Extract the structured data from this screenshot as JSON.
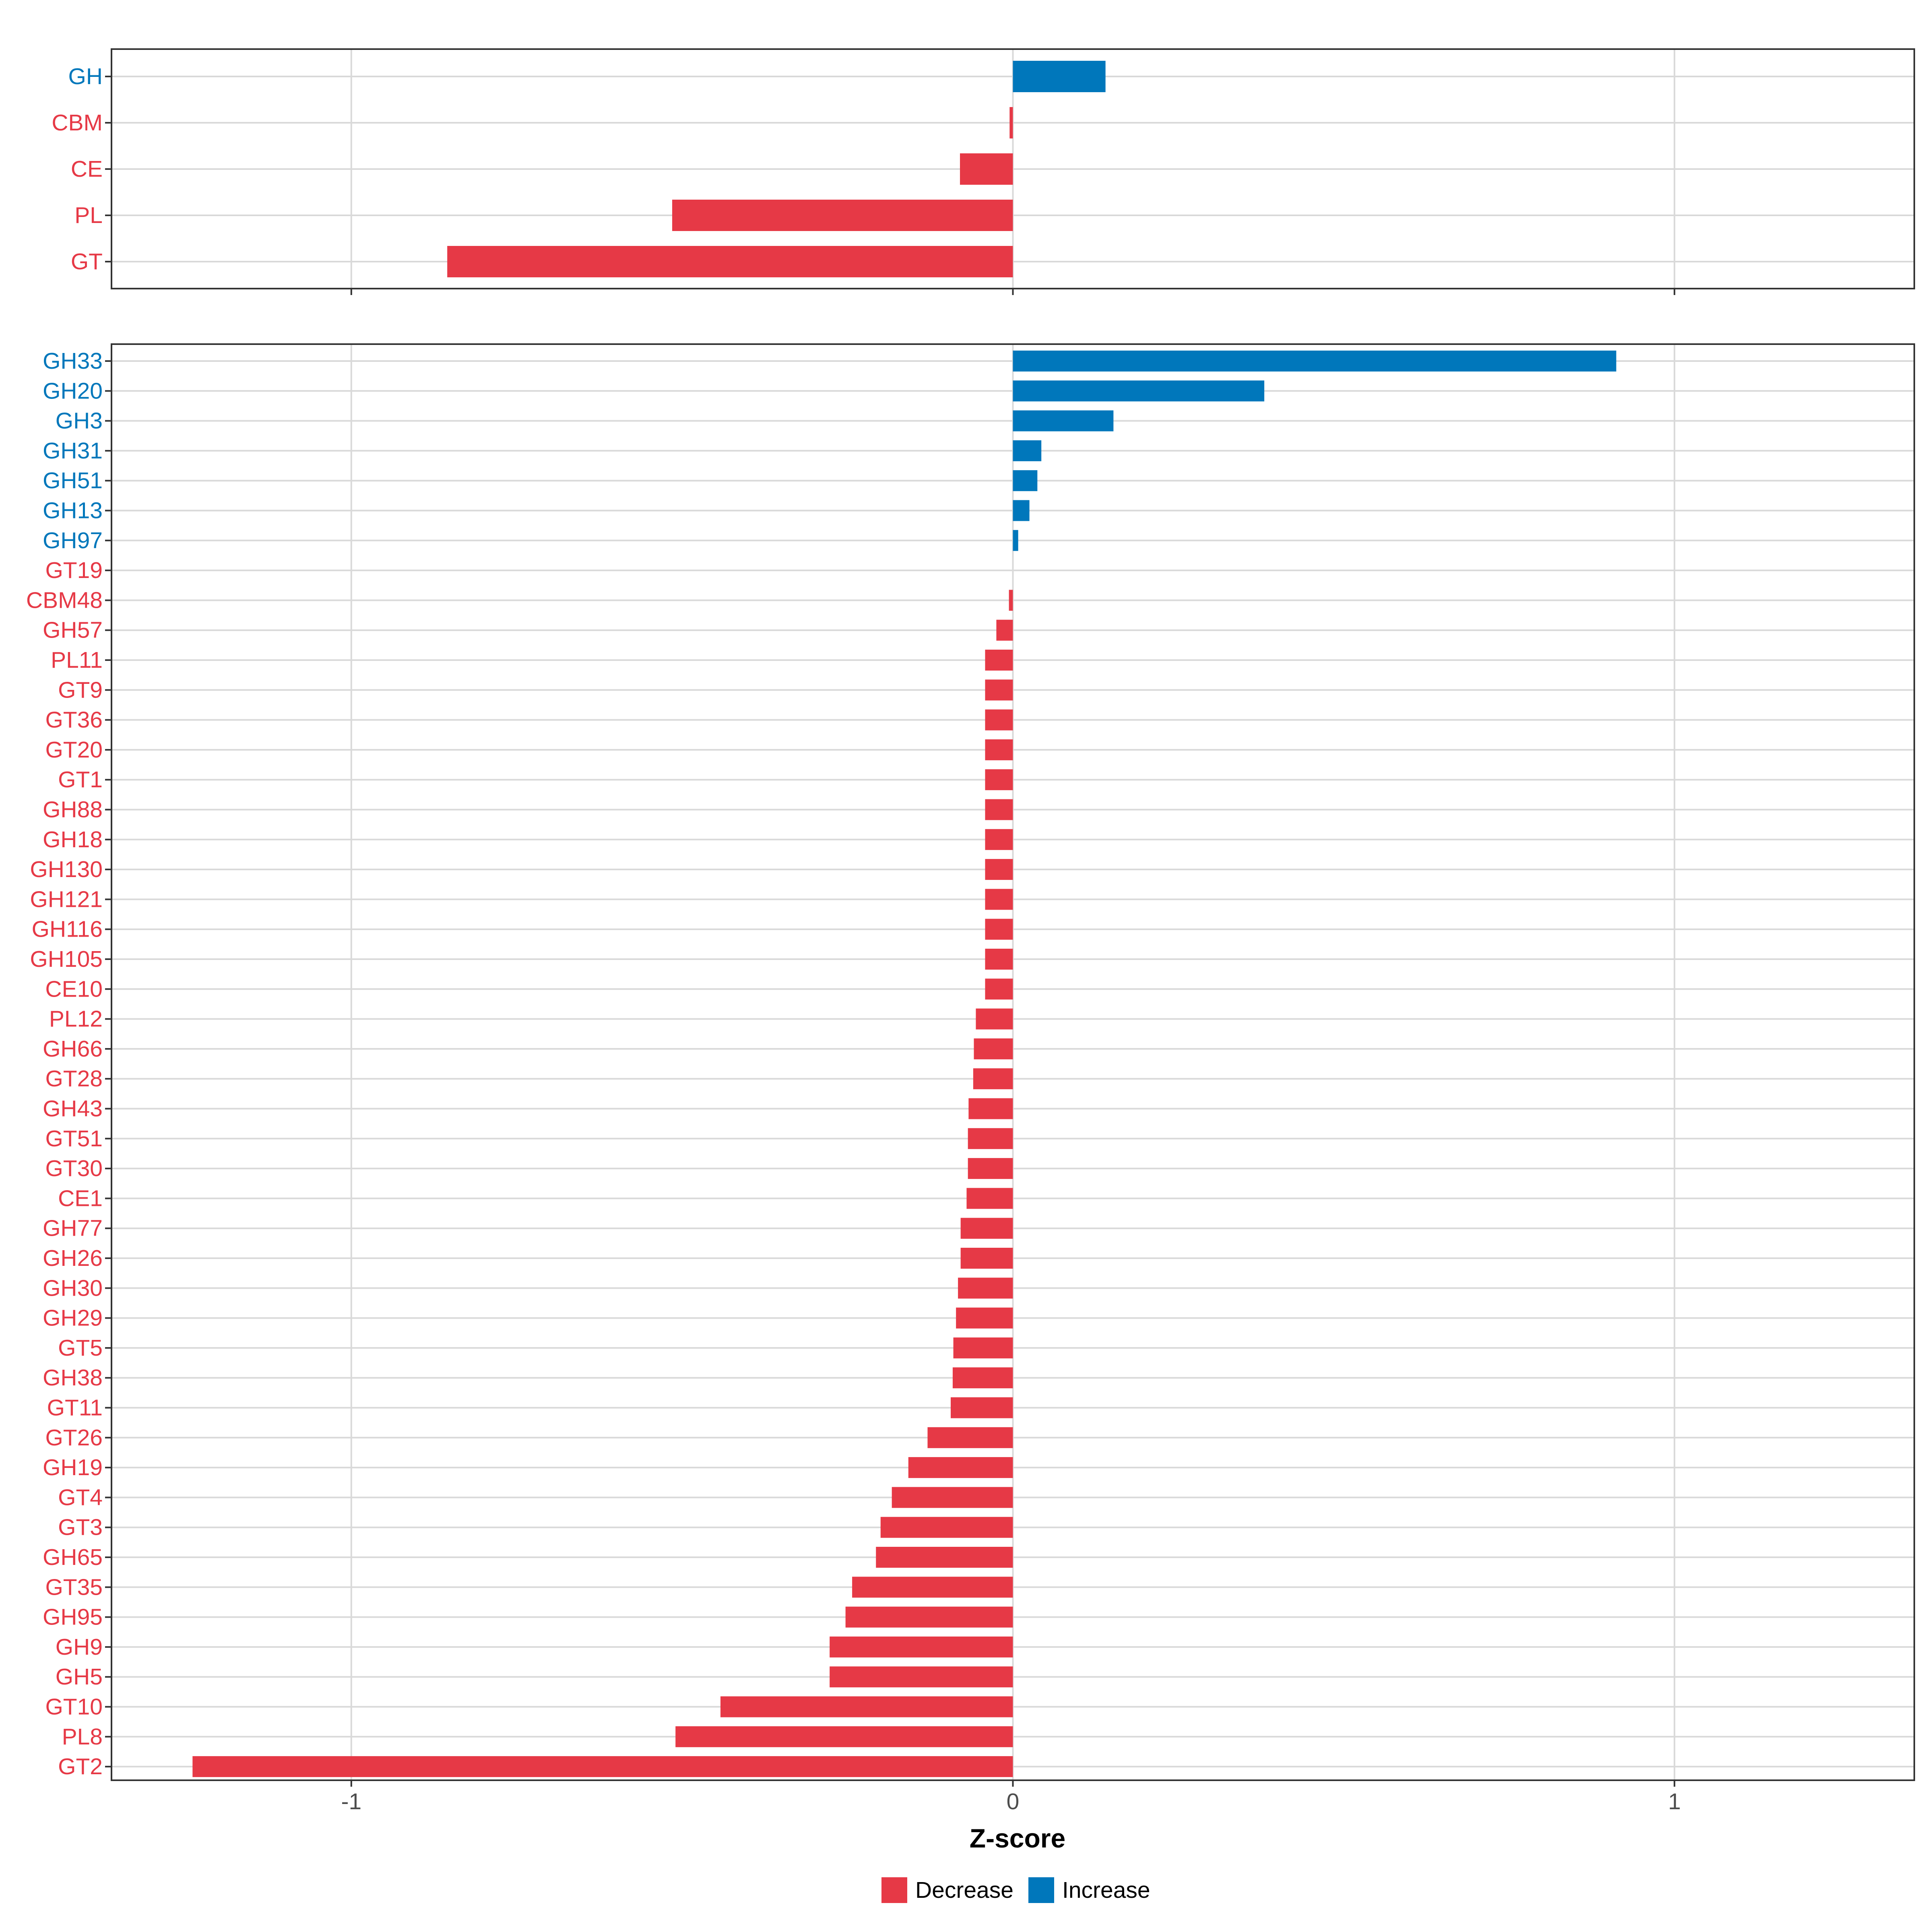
{
  "chart_data": [
    {
      "type": "bar",
      "orientation": "horizontal",
      "panel": "top",
      "title": "",
      "xlabel": "",
      "ylabel": "",
      "xlim": [
        -1.3625,
        1.3625
      ],
      "grid": true,
      "categories": [
        "GH",
        "CBM",
        "CE",
        "PL",
        "GT"
      ],
      "values": [
        0.14,
        -0.005,
        -0.08,
        -0.515,
        -0.855
      ],
      "direction": [
        "Increase",
        "Decrease",
        "Decrease",
        "Decrease",
        "Decrease"
      ]
    },
    {
      "type": "bar",
      "orientation": "horizontal",
      "panel": "bottom",
      "title": "",
      "xlabel": "Z-score",
      "ylabel": "",
      "xlim": [
        -1.3625,
        1.3625
      ],
      "x_ticks": [
        "-1",
        "0",
        "1"
      ],
      "x_tick_values": [
        -1,
        0,
        1
      ],
      "grid": true,
      "categories": [
        "GH33",
        "GH20",
        "GH3",
        "GH31",
        "GH51",
        "GH13",
        "GH97",
        "GT19",
        "CBM48",
        "GH57",
        "PL11",
        "GT9",
        "GT36",
        "GT20",
        "GT1",
        "GH88",
        "GH18",
        "GH130",
        "GH121",
        "GH116",
        "GH105",
        "CE10",
        "PL12",
        "GH66",
        "GT28",
        "GH43",
        "GT51",
        "GT30",
        "CE1",
        "GH77",
        "GH26",
        "GH30",
        "GH29",
        "GT5",
        "GH38",
        "GT11",
        "GT26",
        "GH19",
        "GT4",
        "GT3",
        "GH65",
        "GT35",
        "GH95",
        "GH9",
        "GH5",
        "GT10",
        "PL8",
        "GT2"
      ],
      "values": [
        0.912,
        0.38,
        0.152,
        0.043,
        0.037,
        0.025,
        0.008,
        0.0,
        -0.006,
        -0.025,
        -0.042,
        -0.042,
        -0.042,
        -0.042,
        -0.042,
        -0.042,
        -0.042,
        -0.042,
        -0.042,
        -0.042,
        -0.042,
        -0.042,
        -0.056,
        -0.059,
        -0.06,
        -0.067,
        -0.068,
        -0.068,
        -0.07,
        -0.079,
        -0.079,
        -0.083,
        -0.086,
        -0.09,
        -0.091,
        -0.094,
        -0.129,
        -0.158,
        -0.183,
        -0.2,
        -0.207,
        -0.243,
        -0.253,
        -0.277,
        -0.277,
        -0.442,
        -0.51,
        -1.24
      ],
      "direction": [
        "Increase",
        "Increase",
        "Increase",
        "Increase",
        "Increase",
        "Increase",
        "Increase",
        "Decrease",
        "Decrease",
        "Decrease",
        "Decrease",
        "Decrease",
        "Decrease",
        "Decrease",
        "Decrease",
        "Decrease",
        "Decrease",
        "Decrease",
        "Decrease",
        "Decrease",
        "Decrease",
        "Decrease",
        "Decrease",
        "Decrease",
        "Decrease",
        "Decrease",
        "Decrease",
        "Decrease",
        "Decrease",
        "Decrease",
        "Decrease",
        "Decrease",
        "Decrease",
        "Decrease",
        "Decrease",
        "Decrease",
        "Decrease",
        "Decrease",
        "Decrease",
        "Decrease",
        "Decrease",
        "Decrease",
        "Decrease",
        "Decrease",
        "Decrease",
        "Decrease",
        "Decrease",
        "Decrease"
      ]
    }
  ],
  "legend": {
    "placement": "bottom",
    "items": [
      {
        "label": "Decrease",
        "color": "#E63946"
      },
      {
        "label": "Increase",
        "color": "#0077BB"
      }
    ]
  },
  "colors": {
    "Decrease": "#E63946",
    "Increase": "#0077BB",
    "grid": "#D9D9D9",
    "panel_border": "#333333",
    "axis_text": "#4D4D4D"
  }
}
